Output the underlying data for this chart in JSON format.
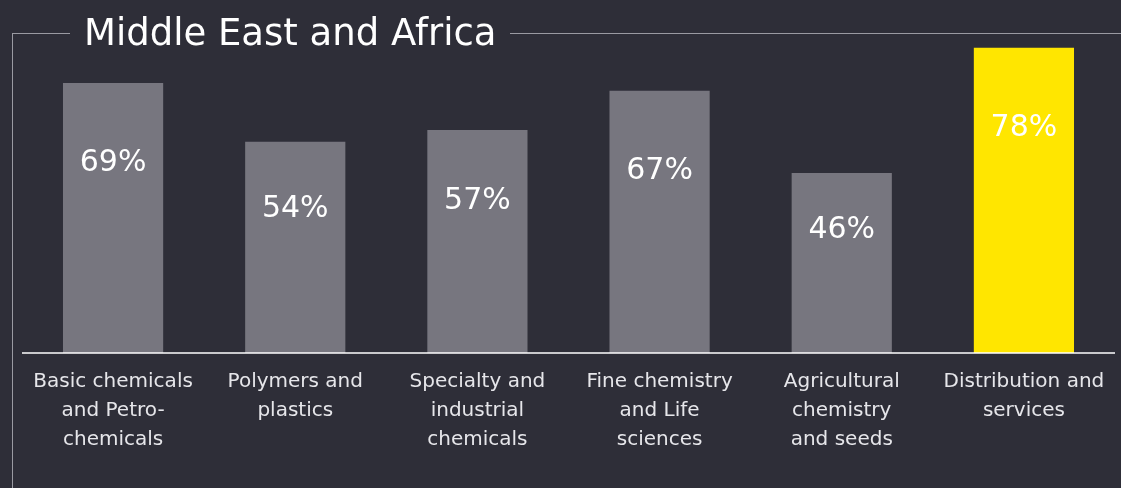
{
  "chart_data": {
    "type": "bar",
    "title": "Middle East and Africa",
    "categories": [
      "Basic chemicals\nand Petro-\nchemicals",
      "Polymers and\nplastics",
      "Specialty and\nindustrial\nchemicals",
      "Fine chemistry\nand Life\nsciences",
      "Agricultural\nchemistry\nand seeds",
      "Distribution and\nservices"
    ],
    "values": [
      69,
      54,
      57,
      67,
      46,
      78
    ],
    "colors": [
      "#77767f",
      "#77767f",
      "#77767f",
      "#77767f",
      "#77767f",
      "#ffe600"
    ],
    "value_labels": [
      "69%",
      "54%",
      "57%",
      "67%",
      "46%",
      "78%"
    ],
    "grid": false,
    "legend": false
  }
}
